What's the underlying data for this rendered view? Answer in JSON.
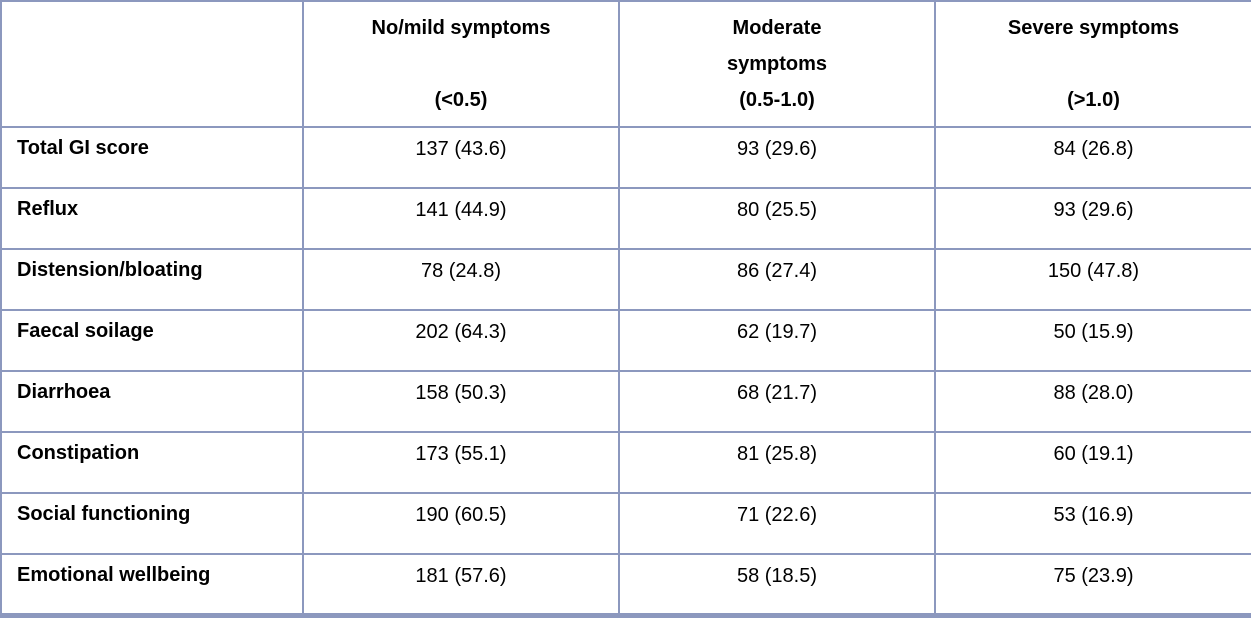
{
  "table": {
    "border_color": "#8C98BE",
    "text_color": "#000000",
    "header": {
      "row_label_column": "",
      "columns": [
        {
          "text": "No/mild symptoms\n\n(<0.5)"
        },
        {
          "text": "Moderate\nsymptoms\n(0.5-1.0)"
        },
        {
          "text": "Severe symptoms\n\n(>1.0)"
        }
      ]
    },
    "rows": [
      {
        "label": "Total GI score",
        "values": [
          "137 (43.6)",
          "93 (29.6)",
          "84 (26.8)"
        ]
      },
      {
        "label": "Reflux",
        "values": [
          "141 (44.9)",
          "80 (25.5)",
          "93 (29.6)"
        ]
      },
      {
        "label": "Distension/bloating",
        "values": [
          "78 (24.8)",
          "86 (27.4)",
          "150 (47.8)"
        ]
      },
      {
        "label": "Faecal soilage",
        "values": [
          "202 (64.3)",
          "62 (19.7)",
          "50 (15.9)"
        ]
      },
      {
        "label": "Diarrhoea",
        "values": [
          "158 (50.3)",
          "68 (21.7)",
          "88 (28.0)"
        ]
      },
      {
        "label": "Constipation",
        "values": [
          "173 (55.1)",
          "81 (25.8)",
          "60 (19.1)"
        ]
      },
      {
        "label": "Social functioning",
        "values": [
          "190 (60.5)",
          "71 (22.6)",
          "53 (16.9)"
        ]
      },
      {
        "label": "Emotional wellbeing",
        "values": [
          "181 (57.6)",
          "58 (18.5)",
          "75 (23.9)"
        ]
      }
    ]
  }
}
